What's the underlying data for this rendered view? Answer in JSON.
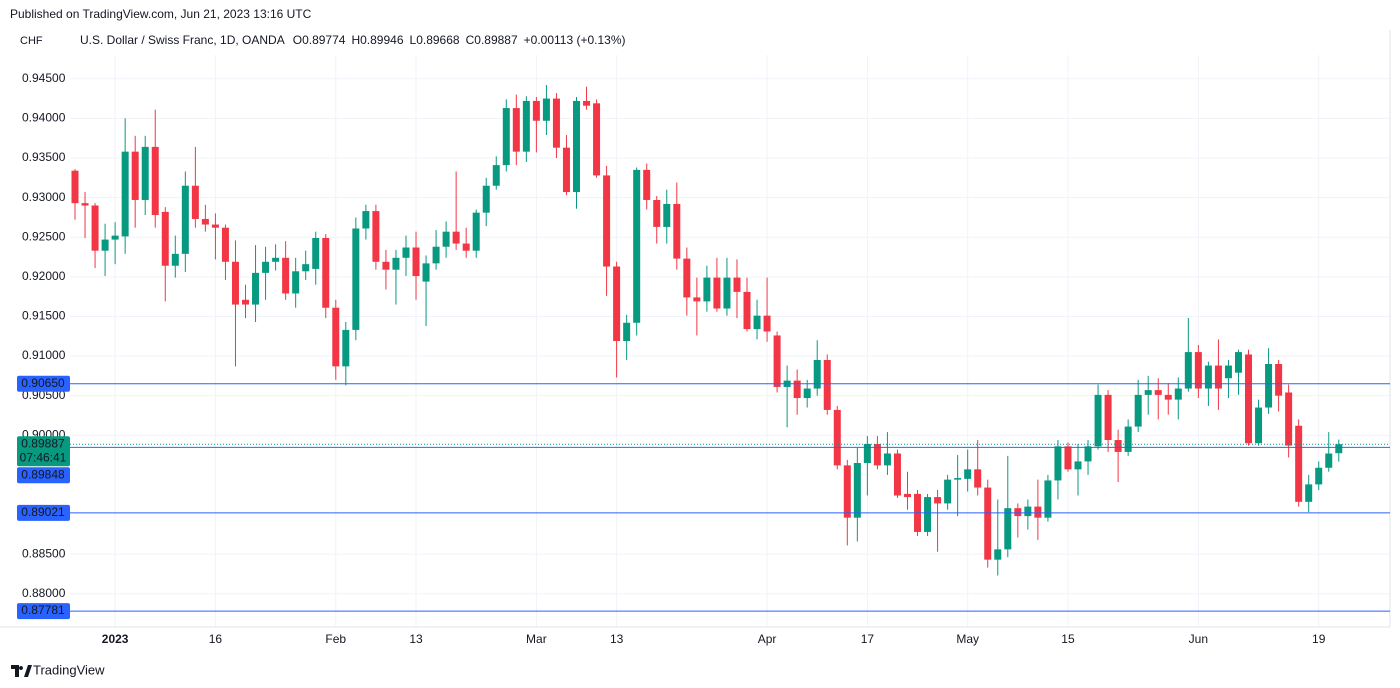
{
  "published": "Published on TradingView.com, Jun 21, 2023 13:16 UTC",
  "brand": "TradingView",
  "chart_data": {
    "type": "candlestick",
    "currency": "CHF",
    "symbol": "U.S. Dollar / Swiss Franc, 1D, OANDA",
    "header_ohlc": [
      {
        "label": "O",
        "value": "0.89774"
      },
      {
        "label": "H",
        "value": "0.89946"
      },
      {
        "label": "L",
        "value": "0.89668"
      },
      {
        "label": "C",
        "value": "0.89887"
      }
    ],
    "change": "+0.00113 (+0.13%)",
    "up_color": "#089981",
    "down_color": "#f23645",
    "line_color": "#2962ff",
    "grid": true,
    "categories": [
      null,
      null,
      null,
      null,
      "2023",
      null,
      null,
      null,
      null,
      null,
      null,
      null,
      null,
      null,
      "16",
      null,
      null,
      null,
      null,
      null,
      null,
      null,
      null,
      null,
      null,
      null,
      "Feb",
      null,
      null,
      null,
      null,
      null,
      null,
      null,
      "13",
      null,
      null,
      null,
      null,
      null,
      null,
      null,
      null,
      null,
      null,
      null,
      "Mar",
      null,
      null,
      null,
      null,
      null,
      null,
      null,
      "13",
      null,
      null,
      null,
      null,
      null,
      null,
      null,
      null,
      null,
      null,
      null,
      null,
      null,
      null,
      "Apr",
      null,
      null,
      null,
      null,
      null,
      null,
      null,
      null,
      null,
      "17",
      null,
      null,
      null,
      null,
      null,
      null,
      null,
      null,
      null,
      "May",
      null,
      null,
      null,
      null,
      null,
      null,
      null,
      null,
      null,
      "15",
      null,
      null,
      null,
      null,
      null,
      null,
      null,
      null,
      null,
      null,
      null,
      null,
      "Jun",
      null,
      null,
      null,
      null,
      null,
      null,
      null,
      null,
      null,
      null,
      null,
      "19",
      null,
      null
    ],
    "open": [
      0.9334,
      0.9293,
      0.929,
      0.9233,
      0.9247,
      0.9251,
      0.9358,
      0.9297,
      0.9364,
      0.9282,
      0.9214,
      0.9229,
      0.9315,
      0.9273,
      0.9266,
      0.9262,
      0.9219,
      0.9171,
      0.9165,
      0.9205,
      0.9219,
      0.9224,
      0.9179,
      0.9207,
      0.921,
      0.9249,
      0.9161,
      0.9087,
      0.9133,
      0.9261,
      0.9283,
      0.9219,
      0.9209,
      0.9224,
      0.9237,
      0.9194,
      0.9217,
      0.9238,
      0.9257,
      0.9242,
      0.9233,
      0.9281,
      0.9315,
      0.9341,
      0.9413,
      0.9358,
      0.9422,
      0.9397,
      0.9425,
      0.9363,
      0.9307,
      0.9422,
      0.9419,
      0.9328,
      0.9213,
      0.9119,
      0.9142,
      0.9335,
      0.9297,
      0.9263,
      0.9292,
      0.9223,
      0.9174,
      0.9169,
      0.9199,
      0.916,
      0.9199,
      0.9181,
      0.9134,
      0.9151,
      0.9126,
      0.9061,
      0.9069,
      0.9047,
      0.9059,
      0.9095,
      0.9032,
      0.8962,
      0.8896,
      0.8965,
      0.8989,
      0.8962,
      0.8977,
      0.8926,
      0.8926,
      0.8878,
      0.8922,
      0.8914,
      0.8944,
      0.8945,
      0.8957,
      0.8934,
      0.8843,
      0.8856,
      0.8908,
      0.8898,
      0.891,
      0.8896,
      0.8943,
      0.8986,
      0.8957,
      0.8967,
      0.8986,
      0.9051,
      0.8994,
      0.8979,
      0.9011,
      0.9051,
      0.9057,
      0.9051,
      0.9045,
      0.9059,
      0.9105,
      0.9059,
      0.9088,
      0.9072,
      0.9079,
      0.9102,
      0.899,
      0.9035,
      0.909,
      0.9054,
      0.9012,
      0.8916,
      0.8938,
      0.8959,
      0.89774
    ],
    "high": [
      0.9336,
      0.9307,
      0.9293,
      0.9267,
      0.9269,
      0.94,
      0.9378,
      0.9378,
      0.9411,
      0.9288,
      0.9252,
      0.9333,
      0.9364,
      0.9291,
      0.928,
      0.9266,
      0.9246,
      0.919,
      0.924,
      0.9238,
      0.9241,
      0.9245,
      0.9224,
      0.9233,
      0.9257,
      0.9254,
      0.9171,
      0.9143,
      0.9275,
      0.9291,
      0.9291,
      0.9234,
      0.9234,
      0.9252,
      0.9257,
      0.9227,
      0.9259,
      0.927,
      0.9333,
      0.9262,
      0.9285,
      0.9325,
      0.9352,
      0.9424,
      0.943,
      0.9428,
      0.9427,
      0.9442,
      0.9432,
      0.9379,
      0.9427,
      0.944,
      0.9424,
      0.934,
      0.9219,
      0.9152,
      0.9338,
      0.9343,
      0.9302,
      0.931,
      0.9319,
      0.9237,
      0.9199,
      0.9214,
      0.9224,
      0.9224,
      0.9222,
      0.9199,
      0.9171,
      0.9199,
      0.9131,
      0.9088,
      0.9083,
      0.907,
      0.912,
      0.9102,
      0.9037,
      0.8969,
      0.8984,
      0.8999,
      0.8999,
      0.9004,
      0.8982,
      0.8954,
      0.8931,
      0.8926,
      0.8931,
      0.895,
      0.8975,
      0.8982,
      0.8994,
      0.8944,
      0.8919,
      0.8974,
      0.8914,
      0.8919,
      0.8944,
      0.895,
      0.8994,
      0.8991,
      0.8989,
      0.8994,
      0.9064,
      0.9057,
      0.9007,
      0.902,
      0.907,
      0.9075,
      0.9072,
      0.9066,
      0.9073,
      0.9148,
      0.9114,
      0.9093,
      0.9121,
      0.9095,
      0.9108,
      0.9108,
      0.9045,
      0.911,
      0.9095,
      0.9064,
      0.902,
      0.895,
      0.8967,
      0.9004,
      0.89946
    ],
    "low": [
      0.9272,
      0.9249,
      0.9211,
      0.9201,
      0.9216,
      0.9229,
      0.9262,
      0.9278,
      0.9262,
      0.9169,
      0.9199,
      0.9206,
      0.9262,
      0.9257,
      0.9222,
      0.9196,
      0.9087,
      0.9148,
      0.9143,
      0.9171,
      0.9208,
      0.9171,
      0.9161,
      0.9196,
      0.919,
      0.9148,
      0.907,
      0.9063,
      0.912,
      0.9247,
      0.9209,
      0.9184,
      0.9165,
      0.9201,
      0.9171,
      0.9138,
      0.9209,
      0.9224,
      0.9234,
      0.9224,
      0.9224,
      0.9264,
      0.931,
      0.9333,
      0.9341,
      0.9345,
      0.9357,
      0.9379,
      0.935,
      0.9303,
      0.9286,
      0.9411,
      0.9325,
      0.9176,
      0.9073,
      0.9095,
      0.9126,
      0.9285,
      0.9242,
      0.9242,
      0.9209,
      0.9151,
      0.9126,
      0.9156,
      0.9156,
      0.9151,
      0.9148,
      0.9131,
      0.9121,
      0.9118,
      0.9054,
      0.901,
      0.9026,
      0.9035,
      0.905,
      0.9026,
      0.8957,
      0.8861,
      0.8866,
      0.8924,
      0.8957,
      0.895,
      0.8921,
      0.8906,
      0.8873,
      0.8873,
      0.8853,
      0.8906,
      0.8898,
      0.8929,
      0.8924,
      0.8833,
      0.8823,
      0.8846,
      0.8871,
      0.8881,
      0.8868,
      0.8891,
      0.8919,
      0.8954,
      0.8924,
      0.895,
      0.8982,
      0.8979,
      0.8941,
      0.8974,
      0.9004,
      0.9026,
      0.902,
      0.9026,
      0.902,
      0.9055,
      0.9047,
      0.9037,
      0.9032,
      0.9047,
      0.9051,
      0.8987,
      0.8987,
      0.9027,
      0.903,
      0.8972,
      0.891,
      0.8903,
      0.8931,
      0.8954,
      0.89668
    ],
    "close": [
      0.9293,
      0.929,
      0.9233,
      0.9247,
      0.9252,
      0.9358,
      0.9297,
      0.9364,
      0.9278,
      0.9214,
      0.9229,
      0.9315,
      0.9273,
      0.9266,
      0.9262,
      0.9219,
      0.9165,
      0.9165,
      0.9205,
      0.9219,
      0.9224,
      0.9179,
      0.9207,
      0.9216,
      0.9249,
      0.9161,
      0.9087,
      0.9133,
      0.9261,
      0.9283,
      0.9219,
      0.9209,
      0.9224,
      0.9237,
      0.9201,
      0.9217,
      0.9238,
      0.9257,
      0.9242,
      0.9233,
      0.9281,
      0.9315,
      0.9341,
      0.9413,
      0.9358,
      0.9422,
      0.9397,
      0.9425,
      0.9363,
      0.9307,
      0.9422,
      0.9416,
      0.9328,
      0.9213,
      0.9119,
      0.9142,
      0.9335,
      0.9297,
      0.9263,
      0.9292,
      0.9223,
      0.9174,
      0.9169,
      0.9199,
      0.916,
      0.9199,
      0.9181,
      0.9134,
      0.9151,
      0.9131,
      0.9061,
      0.9069,
      0.9047,
      0.9059,
      0.9095,
      0.9032,
      0.8962,
      0.8896,
      0.8965,
      0.8989,
      0.8962,
      0.8977,
      0.8924,
      0.8922,
      0.8878,
      0.8922,
      0.8914,
      0.8944,
      0.8946,
      0.8957,
      0.8934,
      0.8843,
      0.8856,
      0.8908,
      0.8898,
      0.891,
      0.8896,
      0.8943,
      0.8986,
      0.8957,
      0.8967,
      0.8986,
      0.9051,
      0.8994,
      0.8979,
      0.9011,
      0.9051,
      0.9057,
      0.9051,
      0.9045,
      0.9059,
      0.9105,
      0.9059,
      0.9088,
      0.9059,
      0.9088,
      0.9105,
      0.899,
      0.9035,
      0.909,
      0.905,
      0.8987,
      0.8916,
      0.8938,
      0.8959,
      0.8977,
      0.89887
    ],
    "ylim": [
      0.8758,
      0.948
    ],
    "yticks": [
      {
        "value": 0.88,
        "label": "0.88000"
      },
      {
        "value": 0.885,
        "label": "0.88500"
      },
      {
        "value": 0.9,
        "label": "0.90000"
      },
      {
        "value": 0.905,
        "label": "0.90500"
      },
      {
        "value": 0.91,
        "label": "0.91000"
      },
      {
        "value": 0.915,
        "label": "0.91500"
      },
      {
        "value": 0.92,
        "label": "0.92000"
      },
      {
        "value": 0.925,
        "label": "0.92500"
      },
      {
        "value": 0.93,
        "label": "0.93000"
      },
      {
        "value": 0.935,
        "label": "0.93500"
      },
      {
        "value": 0.94,
        "label": "0.94000"
      },
      {
        "value": 0.945,
        "label": "0.94500"
      }
    ],
    "price_lines": [
      {
        "value": 0.9065,
        "label": "0.90650"
      },
      {
        "value": 0.89848,
        "label": "0.89848"
      },
      {
        "value": 0.89021,
        "label": "0.89021"
      },
      {
        "value": 0.87781,
        "label": "0.87781"
      }
    ],
    "last_price": {
      "value": 0.89887,
      "label": "0.89887",
      "countdown": "07:46:41"
    }
  }
}
